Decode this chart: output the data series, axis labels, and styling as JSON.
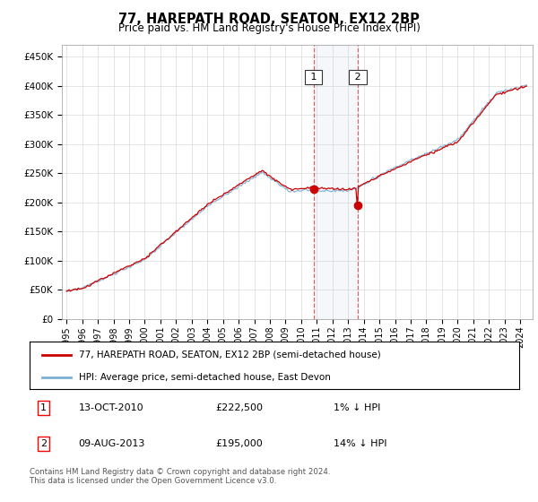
{
  "title": "77, HAREPATH ROAD, SEATON, EX12 2BP",
  "subtitle": "Price paid vs. HM Land Registry's House Price Index (HPI)",
  "ylabel_ticks": [
    "£0",
    "£50K",
    "£100K",
    "£150K",
    "£200K",
    "£250K",
    "£300K",
    "£350K",
    "£400K",
    "£450K"
  ],
  "ytick_values": [
    0,
    50000,
    100000,
    150000,
    200000,
    250000,
    300000,
    350000,
    400000,
    450000
  ],
  "ylim": [
    0,
    470000
  ],
  "xlim_start": 1994.7,
  "xlim_end": 2024.8,
  "hpi_color": "#7bafd4",
  "price_color": "#cc0000",
  "marker1_date": 2010.79,
  "marker1_value": 222500,
  "marker2_date": 2013.62,
  "marker2_value": 195000,
  "shading_start": 2010.79,
  "shading_end": 2013.62,
  "legend_line1": "77, HAREPATH ROAD, SEATON, EX12 2BP (semi-detached house)",
  "legend_line2": "HPI: Average price, semi-detached house, East Devon",
  "table_row1_num": "1",
  "table_row1_date": "13-OCT-2010",
  "table_row1_price": "£222,500",
  "table_row1_hpi": "1% ↓ HPI",
  "table_row2_num": "2",
  "table_row2_date": "09-AUG-2013",
  "table_row2_price": "£195,000",
  "table_row2_hpi": "14% ↓ HPI",
  "footnote": "Contains HM Land Registry data © Crown copyright and database right 2024.\nThis data is licensed under the Open Government Licence v3.0.",
  "background_color": "#ffffff"
}
